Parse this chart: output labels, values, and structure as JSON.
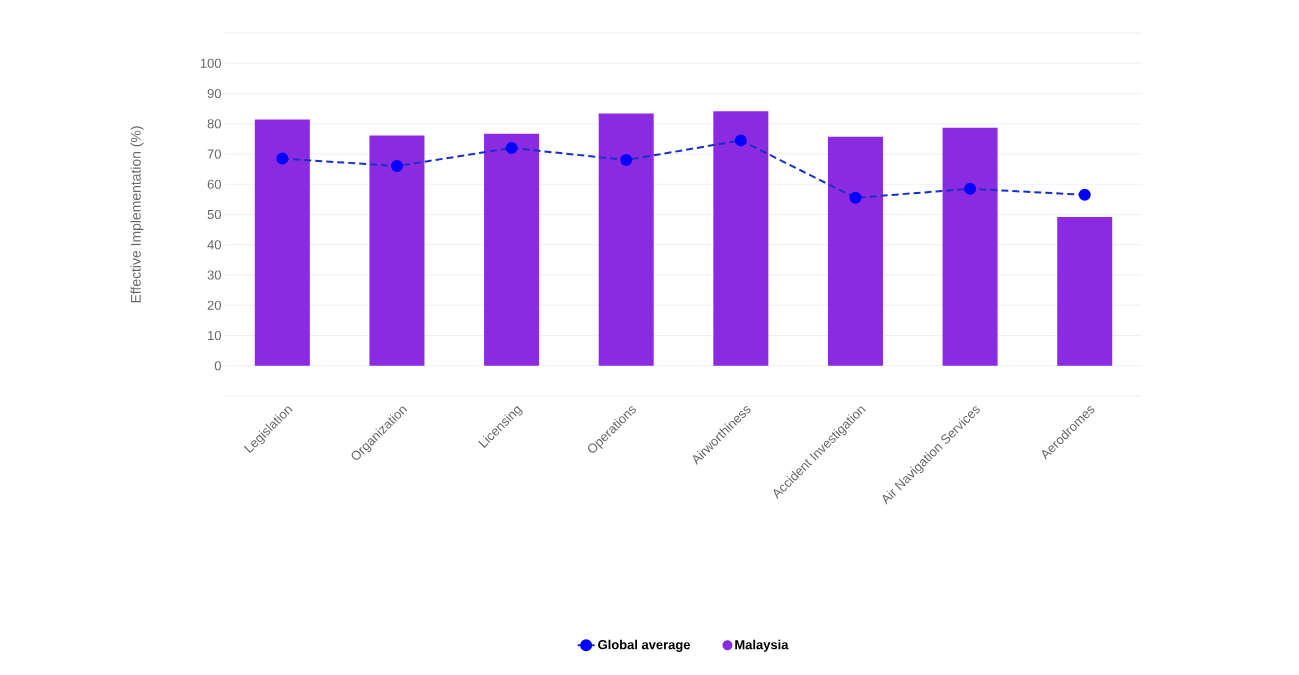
{
  "chart_data": {
    "type": "bar",
    "ylabel": "Effective Implementation (%)",
    "categories": [
      "Legislation",
      "Organization",
      "Licensing",
      "Operations",
      "Airworthiness",
      "Accident Investigation",
      "Air Navigation Services",
      "Aerodromes"
    ],
    "series": [
      {
        "name": "Malaysia",
        "color": "#8a2be2",
        "values": [
          81.4,
          76.1,
          76.7,
          83.4,
          84.1,
          75.7,
          78.7,
          49.2
        ]
      },
      {
        "name": "Global average",
        "type": "line",
        "color": "#1a2fc8",
        "line_style": "dashed",
        "marker": "circle",
        "values": [
          68.5,
          66,
          72,
          68,
          74.5,
          55.5,
          58.5,
          56.5
        ]
      }
    ],
    "ylim": [
      -10,
      110
    ],
    "yticks": [
      0,
      10,
      20,
      30,
      40,
      50,
      60,
      70,
      80,
      90,
      100,
      {
        "value": 110,
        "label": null
      }
    ],
    "grid": "y",
    "legend": "bottom"
  }
}
